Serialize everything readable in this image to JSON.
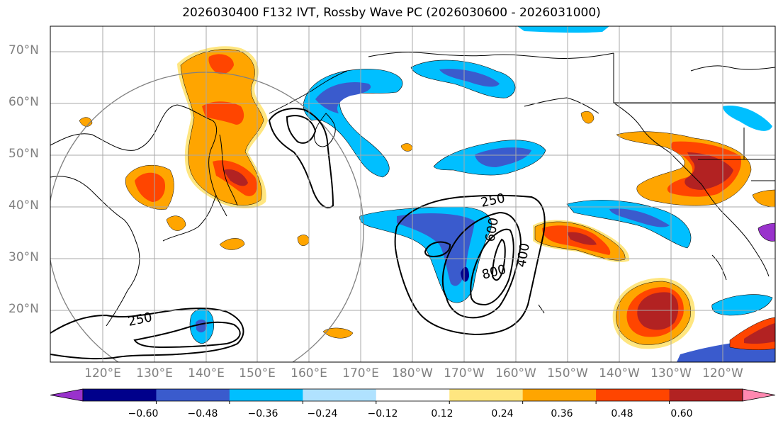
{
  "title": "2026030400 F132 IVT, Rossby Wave PC (2026030600 - 2026031000)",
  "lat_labels": [
    "70°N",
    "60°N",
    "50°N",
    "40°N",
    "30°N",
    "20°N"
  ],
  "lon_labels": [
    "120°E",
    "130°E",
    "140°E",
    "150°E",
    "160°E",
    "170°E",
    "180°W",
    "170°W",
    "160°W",
    "150°W",
    "140°W",
    "130°W",
    "120°W"
  ],
  "contour_labels": [
    "250",
    "250",
    "600",
    "400",
    "800"
  ],
  "colorbar": {
    "ticks": [
      "−0.60",
      "−0.48",
      "−0.36",
      "−0.24",
      "−0.12",
      "0.12",
      "0.24",
      "0.36",
      "0.48",
      "0.60"
    ],
    "colors": [
      "#9932CC",
      "#00008B",
      "#3A5BCD",
      "#00BFFF",
      "#B0E2FF",
      "#FFFFFF",
      "#FFE680",
      "#FFA500",
      "#FF4500",
      "#B22222",
      "#FF88B0"
    ]
  },
  "palette": {
    "neg_purple": "#9932CC",
    "neg_navy": "#00008B",
    "neg_blue": "#3A5BCD",
    "neg_sky": "#00BFFF",
    "neg_light": "#B0E2FF",
    "pos_yellow": "#FFE680",
    "pos_orange": "#FFA500",
    "pos_red": "#FF4500",
    "pos_dark": "#B22222",
    "pos_pink": "#FF88B0"
  }
}
